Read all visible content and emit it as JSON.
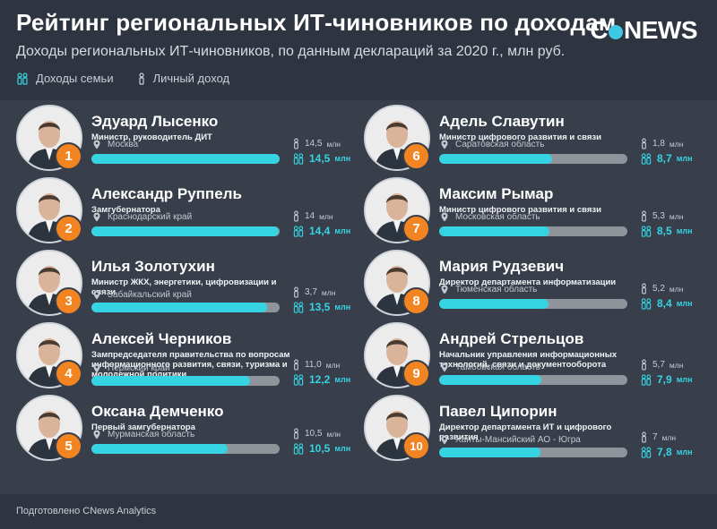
{
  "header": {
    "title": "Рейтинг региональных ИТ-чиновников по доходам",
    "subtitle": "Доходы региональных ИТ-чиновников, по данным деклараций за 2020 г., млн руб.",
    "logo_text": "CNews"
  },
  "legend": {
    "family": "Доходы семьи",
    "personal": "Личный доход",
    "family_icon": "family-icon",
    "personal_icon": "person-icon"
  },
  "colors": {
    "background": "#2f3540",
    "panel": "#383e4a",
    "accent": "#36d4e2",
    "rank_badge": "#f28522",
    "bar_track": "#8f949b"
  },
  "chart_data": {
    "type": "bar",
    "unit": "млн руб.",
    "max": 14.5,
    "items": [
      {
        "rank": "1",
        "name": "Эдуард Лысенко",
        "position": "Министр, руководитель ДИТ",
        "region": "Москва",
        "personal": 14.5,
        "family": 14.5,
        "personal_text": "14,5",
        "family_text": "14,5"
      },
      {
        "rank": "2",
        "name": "Александр Руппель",
        "position": "Замгубернатора",
        "region": "Краснодарский край",
        "personal": 14.0,
        "family": 14.4,
        "personal_text": "14",
        "family_text": "14,4"
      },
      {
        "rank": "3",
        "name": "Илья Золотухин",
        "position": "Министр ЖКХ, энергетики, цифровизации и связи",
        "region": "Забайкальский край",
        "personal": 3.7,
        "family": 13.5,
        "personal_text": "3,7",
        "family_text": "13,5"
      },
      {
        "rank": "4",
        "name": "Алексей Черников",
        "position": "Зампредседателя правительства по вопросам информационного развития, связи, туризма и молодежной политики",
        "region": "Пермский край",
        "personal": 11.0,
        "family": 12.2,
        "personal_text": "11,0",
        "family_text": "12,2"
      },
      {
        "rank": "5",
        "name": "Оксана Демченко",
        "position": "Первый замгубернатора",
        "region": "Мурманская область",
        "personal": 10.5,
        "family": 10.5,
        "personal_text": "10,5",
        "family_text": "10,5"
      },
      {
        "rank": "6",
        "name": "Адель Славутин",
        "position": "Министр цифрового развития и связи",
        "region": "Саратовская область",
        "personal": 1.8,
        "family": 8.7,
        "personal_text": "1,8",
        "family_text": "8,7"
      },
      {
        "rank": "7",
        "name": "Максим Рымар",
        "position": "Министр цифрового развития и связи",
        "region": "Московская область",
        "personal": 5.3,
        "family": 8.5,
        "personal_text": "5,3",
        "family_text": "8,5"
      },
      {
        "rank": "8",
        "name": "Мария Рудзевич",
        "position": "Директор департамента информатизации",
        "region": "Тюменская область",
        "personal": 5.2,
        "family": 8.4,
        "personal_text": "5,2",
        "family_text": "8,4"
      },
      {
        "rank": "9",
        "name": "Андрей Стрельцов",
        "position": "Начальник управления информационных технологий, связи и документооборота",
        "region": "Тамбовская область",
        "personal": 5.7,
        "family": 7.9,
        "personal_text": "5,7",
        "family_text": "7,9"
      },
      {
        "rank": "10",
        "name": "Павел Ципорин",
        "position": "Директор департамента ИТ и цифрового развития",
        "region": "Ханты-Мансийский АО - Югра",
        "personal": 7.0,
        "family": 7.8,
        "personal_text": "7",
        "family_text": "7,8"
      }
    ],
    "value_unit_label": "млн"
  },
  "footer": {
    "credit": "Подготовлено CNews Analytics"
  }
}
